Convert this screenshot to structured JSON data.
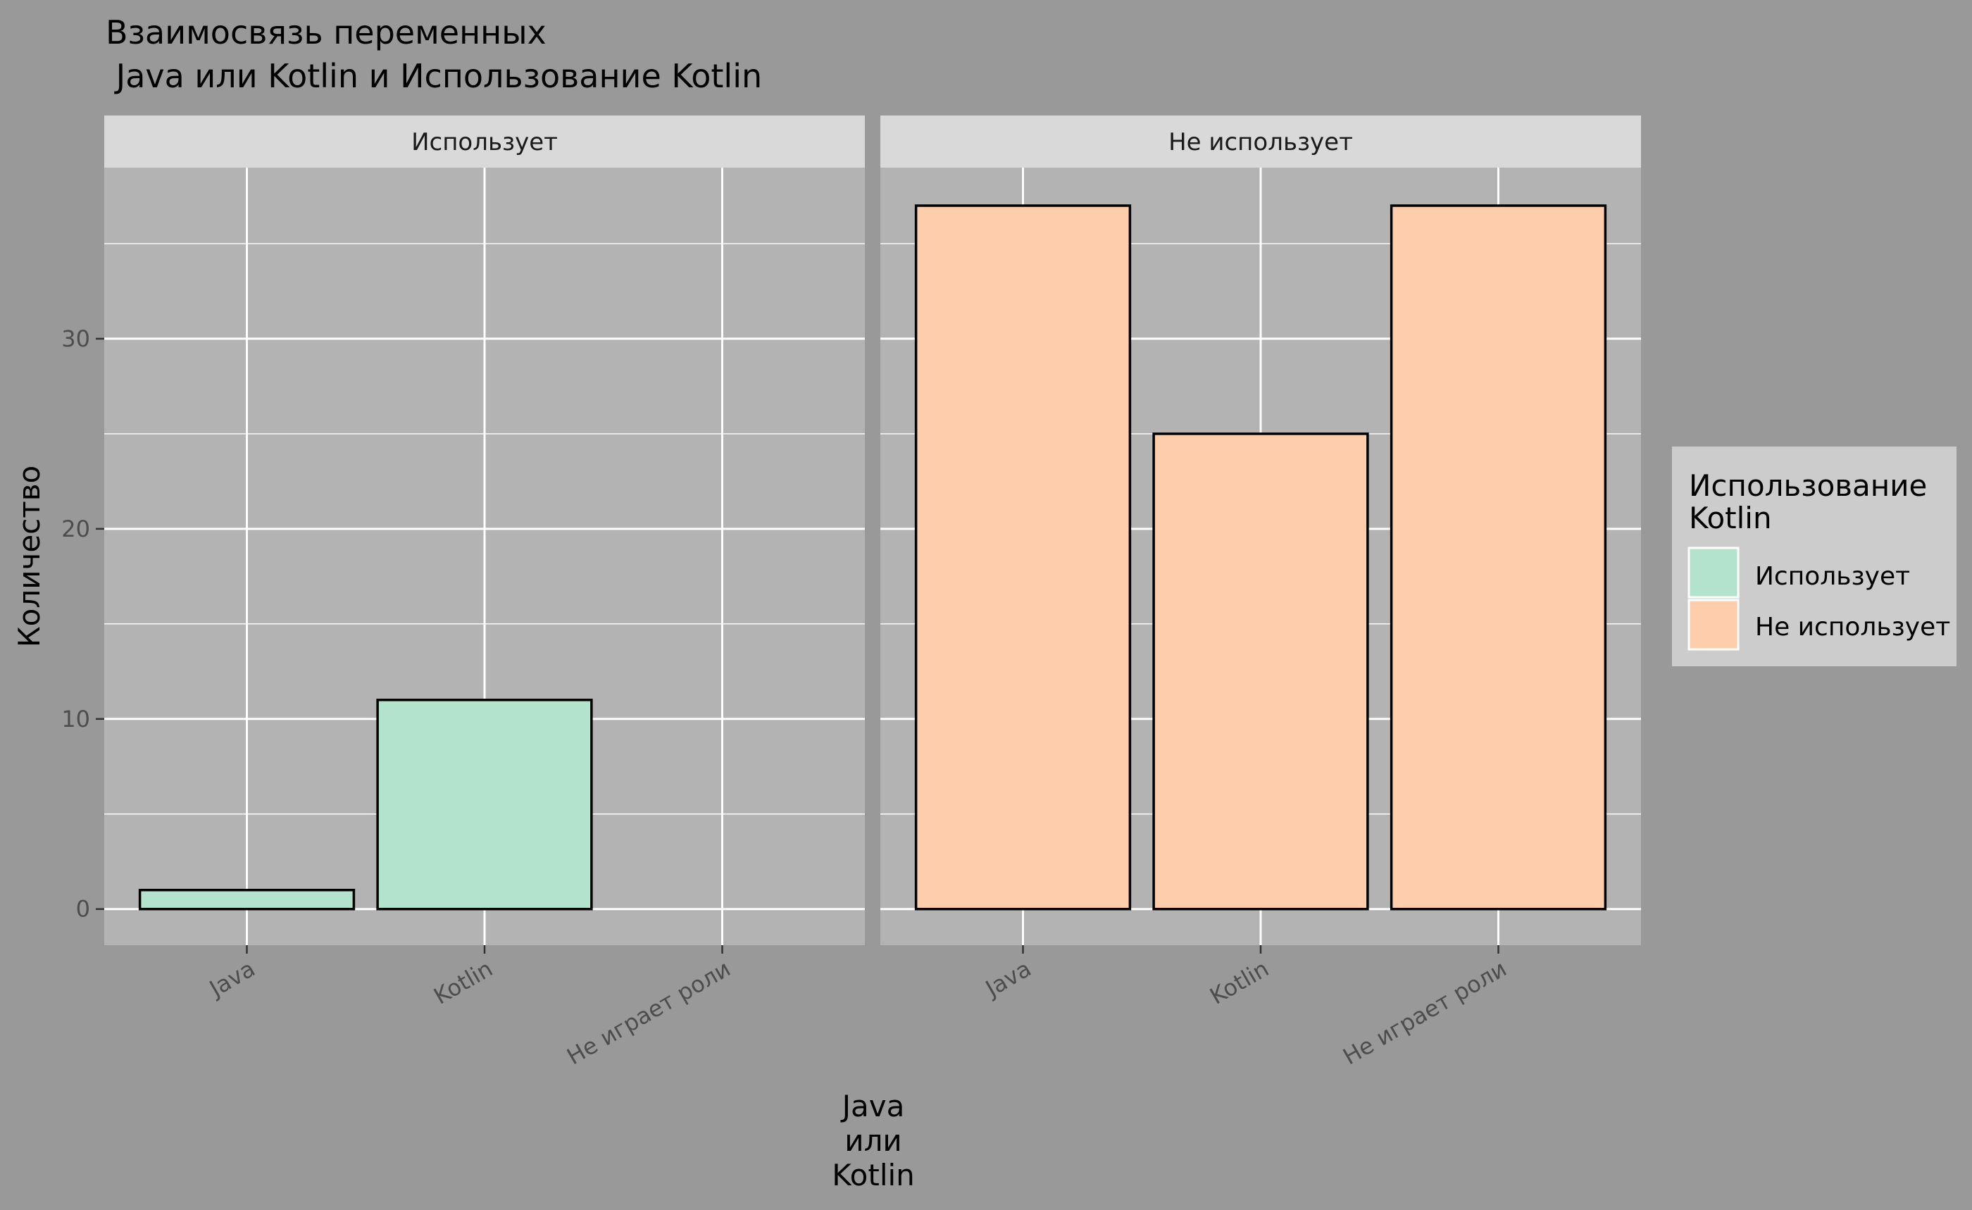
{
  "chart_data": {
    "type": "bar",
    "title_lines": [
      "Взаимосвязь переменных",
      " Java или Kotlin и Использование Kotlin"
    ],
    "xlabel_lines": [
      "Java",
      "или",
      "Kotlin"
    ],
    "ylabel": "Количество",
    "categories": [
      "Java",
      "Kotlin",
      "Не играет роли"
    ],
    "ylim": [
      -1.9,
      39
    ],
    "y_ticks": [
      0,
      10,
      20,
      30
    ],
    "grid": true,
    "legend": {
      "title_lines": [
        "Использование",
        "Kotlin"
      ],
      "placement": "right"
    },
    "facets": [
      {
        "label": "Использует",
        "series": [
          {
            "name": "Использует",
            "values": [
              1,
              11,
              0
            ],
            "color": "#B3E2CD"
          }
        ]
      },
      {
        "label": "Не использует",
        "series": [
          {
            "name": "Не использует",
            "values": [
              37,
              25,
              37
            ],
            "color": "#FDCDAC"
          }
        ]
      }
    ],
    "colors": {
      "page_bg": "#999999",
      "panel_bg": "#B3B3B3",
      "strip_bg": "#D9D9D9",
      "grid": "#FFFFFF",
      "legend_bg": "#CCCCCC",
      "bar_outline": "#000000"
    }
  }
}
